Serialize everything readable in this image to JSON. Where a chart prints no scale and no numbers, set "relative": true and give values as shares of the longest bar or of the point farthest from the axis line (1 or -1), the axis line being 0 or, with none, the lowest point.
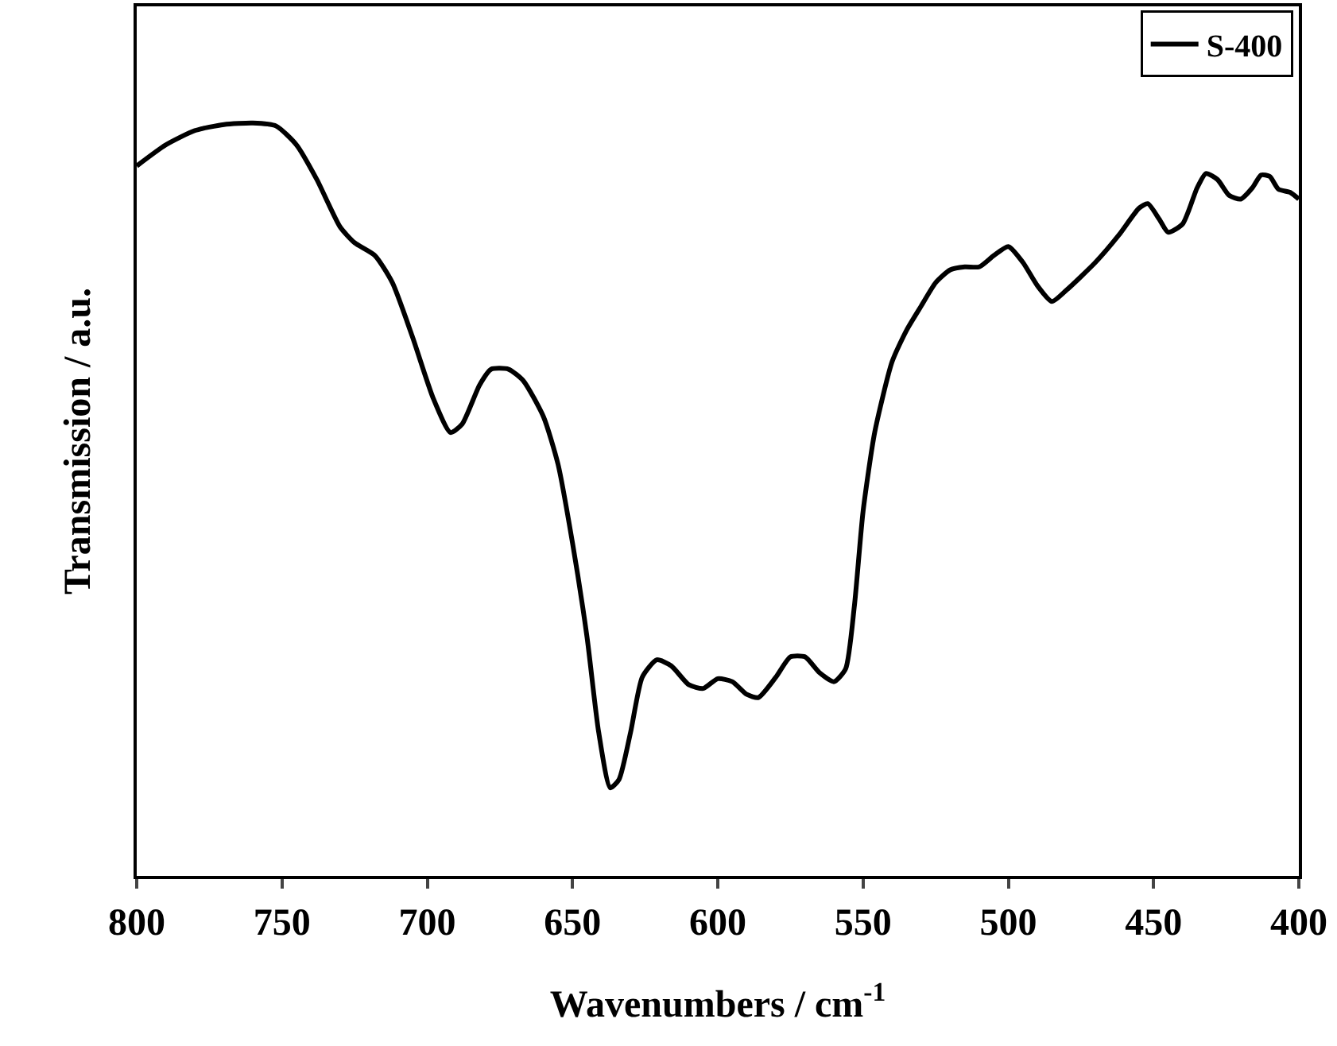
{
  "chart_data": {
    "type": "line",
    "relative": true,
    "xlabel": "Wavenumbers / cm$^{-1}$",
    "ylabel": "Transmission / a.u.",
    "xlim": [
      800,
      400
    ],
    "xticks": [
      800,
      750,
      700,
      650,
      600,
      550,
      500,
      450,
      400
    ],
    "legend": "top right",
    "series": [
      {
        "name": "S-400",
        "color": "#000000",
        "x": [
          800,
          790,
          780,
          770,
          760,
          752,
          745,
          738,
          730,
          725,
          718,
          712,
          705,
          698,
          692,
          688,
          682,
          678,
          672,
          667,
          660,
          655,
          650,
          645,
          641,
          637,
          634,
          630,
          626,
          621,
          616,
          610,
          605,
          600,
          595,
          590,
          586,
          580,
          575,
          570,
          565,
          560,
          556,
          553,
          550,
          546,
          540,
          535,
          530,
          525,
          520,
          515,
          510,
          505,
          500,
          495,
          490,
          485,
          480,
          470,
          462,
          455,
          452,
          448,
          445,
          440,
          435,
          432,
          428,
          424,
          420,
          416,
          413,
          410,
          407,
          403,
          400
        ],
        "values": [
          0.943,
          0.971,
          0.99,
          0.998,
          1,
          0.996,
          0.971,
          0.925,
          0.862,
          0.841,
          0.824,
          0.788,
          0.715,
          0.635,
          0.589,
          0.6,
          0.652,
          0.673,
          0.673,
          0.658,
          0.61,
          0.547,
          0.442,
          0.317,
          0.191,
          0.117,
          0.128,
          0.191,
          0.264,
          0.287,
          0.279,
          0.254,
          0.249,
          0.262,
          0.258,
          0.241,
          0.237,
          0.264,
          0.291,
          0.291,
          0.27,
          0.258,
          0.275,
          0.358,
          0.484,
          0.589,
          0.683,
          0.725,
          0.757,
          0.788,
          0.805,
          0.809,
          0.809,
          0.824,
          0.836,
          0.815,
          0.784,
          0.763,
          0.778,
          0.815,
          0.851,
          0.887,
          0.893,
          0.872,
          0.855,
          0.866,
          0.914,
          0.933,
          0.925,
          0.904,
          0.899,
          0.914,
          0.931,
          0.929,
          0.912,
          0.908,
          0.899
        ]
      }
    ]
  }
}
